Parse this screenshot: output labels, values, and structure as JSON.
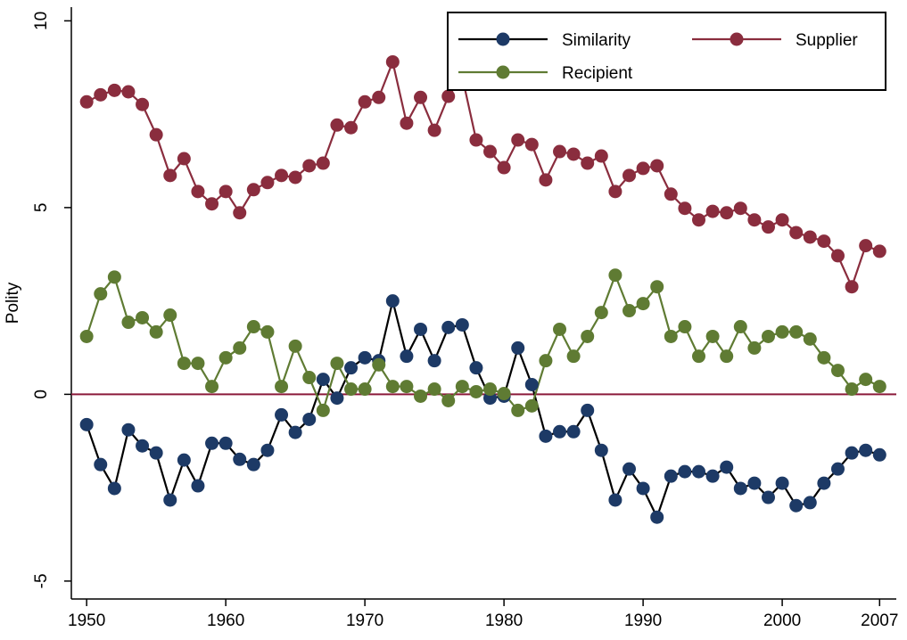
{
  "chart_data": {
    "type": "line",
    "y_label": "Polity",
    "x": [
      1950,
      1951,
      1952,
      1953,
      1954,
      1955,
      1956,
      1957,
      1958,
      1959,
      1960,
      1961,
      1962,
      1963,
      1964,
      1965,
      1966,
      1967,
      1968,
      1969,
      1970,
      1971,
      1972,
      1973,
      1974,
      1975,
      1976,
      1977,
      1978,
      1979,
      1980,
      1981,
      1982,
      1983,
      1984,
      1985,
      1986,
      1987,
      1988,
      1989,
      1990,
      1991,
      1992,
      1993,
      1994,
      1995,
      1996,
      1997,
      1998,
      1999,
      2000,
      2001,
      2002,
      2003,
      2004,
      2005,
      2006,
      2007
    ],
    "series": [
      {
        "name": "Similarity",
        "color": "#1d3a66",
        "line_color": "#000000",
        "values": [
          -0.81,
          -1.88,
          -2.52,
          -0.95,
          -1.38,
          -1.57,
          -2.83,
          -1.76,
          -2.45,
          -1.31,
          -1.31,
          -1.74,
          -1.88,
          -1.5,
          -0.55,
          -1.02,
          -0.67,
          0.4,
          -0.1,
          0.71,
          0.98,
          0.9,
          2.5,
          1.02,
          1.74,
          0.9,
          1.79,
          1.86,
          0.71,
          -0.1,
          -0.05,
          1.24,
          0.26,
          -1.12,
          -1.0,
          -1.0,
          -0.43,
          -1.5,
          -2.83,
          -2.0,
          -2.52,
          -3.29,
          -2.19,
          -2.07,
          -2.07,
          -2.19,
          -1.95,
          -2.52,
          -2.38,
          -2.76,
          -2.38,
          -2.98,
          -2.9,
          -2.38,
          -2.0,
          -1.57,
          -1.5,
          -1.62
        ]
      },
      {
        "name": "Supplier",
        "color": "#8a2d3e",
        "line_color": "#8a2d3e",
        "values": [
          7.83,
          8.02,
          8.14,
          8.1,
          7.76,
          6.95,
          5.86,
          6.31,
          5.43,
          5.1,
          5.43,
          4.86,
          5.48,
          5.67,
          5.86,
          5.81,
          6.12,
          6.19,
          7.21,
          7.14,
          7.83,
          7.95,
          8.9,
          7.26,
          7.95,
          7.07,
          7.98,
          8.5,
          6.81,
          6.5,
          6.07,
          6.81,
          6.69,
          5.74,
          6.5,
          6.43,
          6.19,
          6.38,
          5.43,
          5.86,
          6.05,
          6.12,
          5.36,
          4.98,
          4.67,
          4.9,
          4.86,
          4.98,
          4.67,
          4.48,
          4.67,
          4.33,
          4.21,
          4.1,
          3.71,
          2.88,
          3.98,
          3.83
        ]
      },
      {
        "name": "Recipient",
        "color": "#5f7b33",
        "line_color": "#5f7b33",
        "values": [
          1.55,
          2.69,
          3.14,
          1.93,
          2.05,
          1.67,
          2.12,
          0.83,
          0.83,
          0.21,
          0.98,
          1.24,
          1.81,
          1.67,
          0.21,
          1.29,
          0.45,
          -0.43,
          0.83,
          0.14,
          0.14,
          0.79,
          0.21,
          0.21,
          -0.05,
          0.14,
          -0.17,
          0.21,
          0.07,
          0.14,
          0.02,
          -0.43,
          -0.31,
          0.9,
          1.74,
          1.02,
          1.55,
          2.19,
          3.19,
          2.24,
          2.43,
          2.88,
          1.55,
          1.81,
          1.02,
          1.55,
          1.02,
          1.81,
          1.24,
          1.55,
          1.67,
          1.67,
          1.48,
          0.98,
          0.64,
          0.14,
          0.4,
          0.21
        ]
      }
    ],
    "reference_line": {
      "y": 0,
      "color": "#8b1a3a"
    },
    "xlim": [
      1948.9,
      2008.2
    ],
    "xticks": [
      1950,
      1960,
      1970,
      1980,
      1990,
      2000,
      2007
    ],
    "ylim": [
      -5.48,
      10.2
    ],
    "yticks": [
      -5,
      0,
      5,
      10
    ],
    "grid": false,
    "legend": "upper right"
  }
}
